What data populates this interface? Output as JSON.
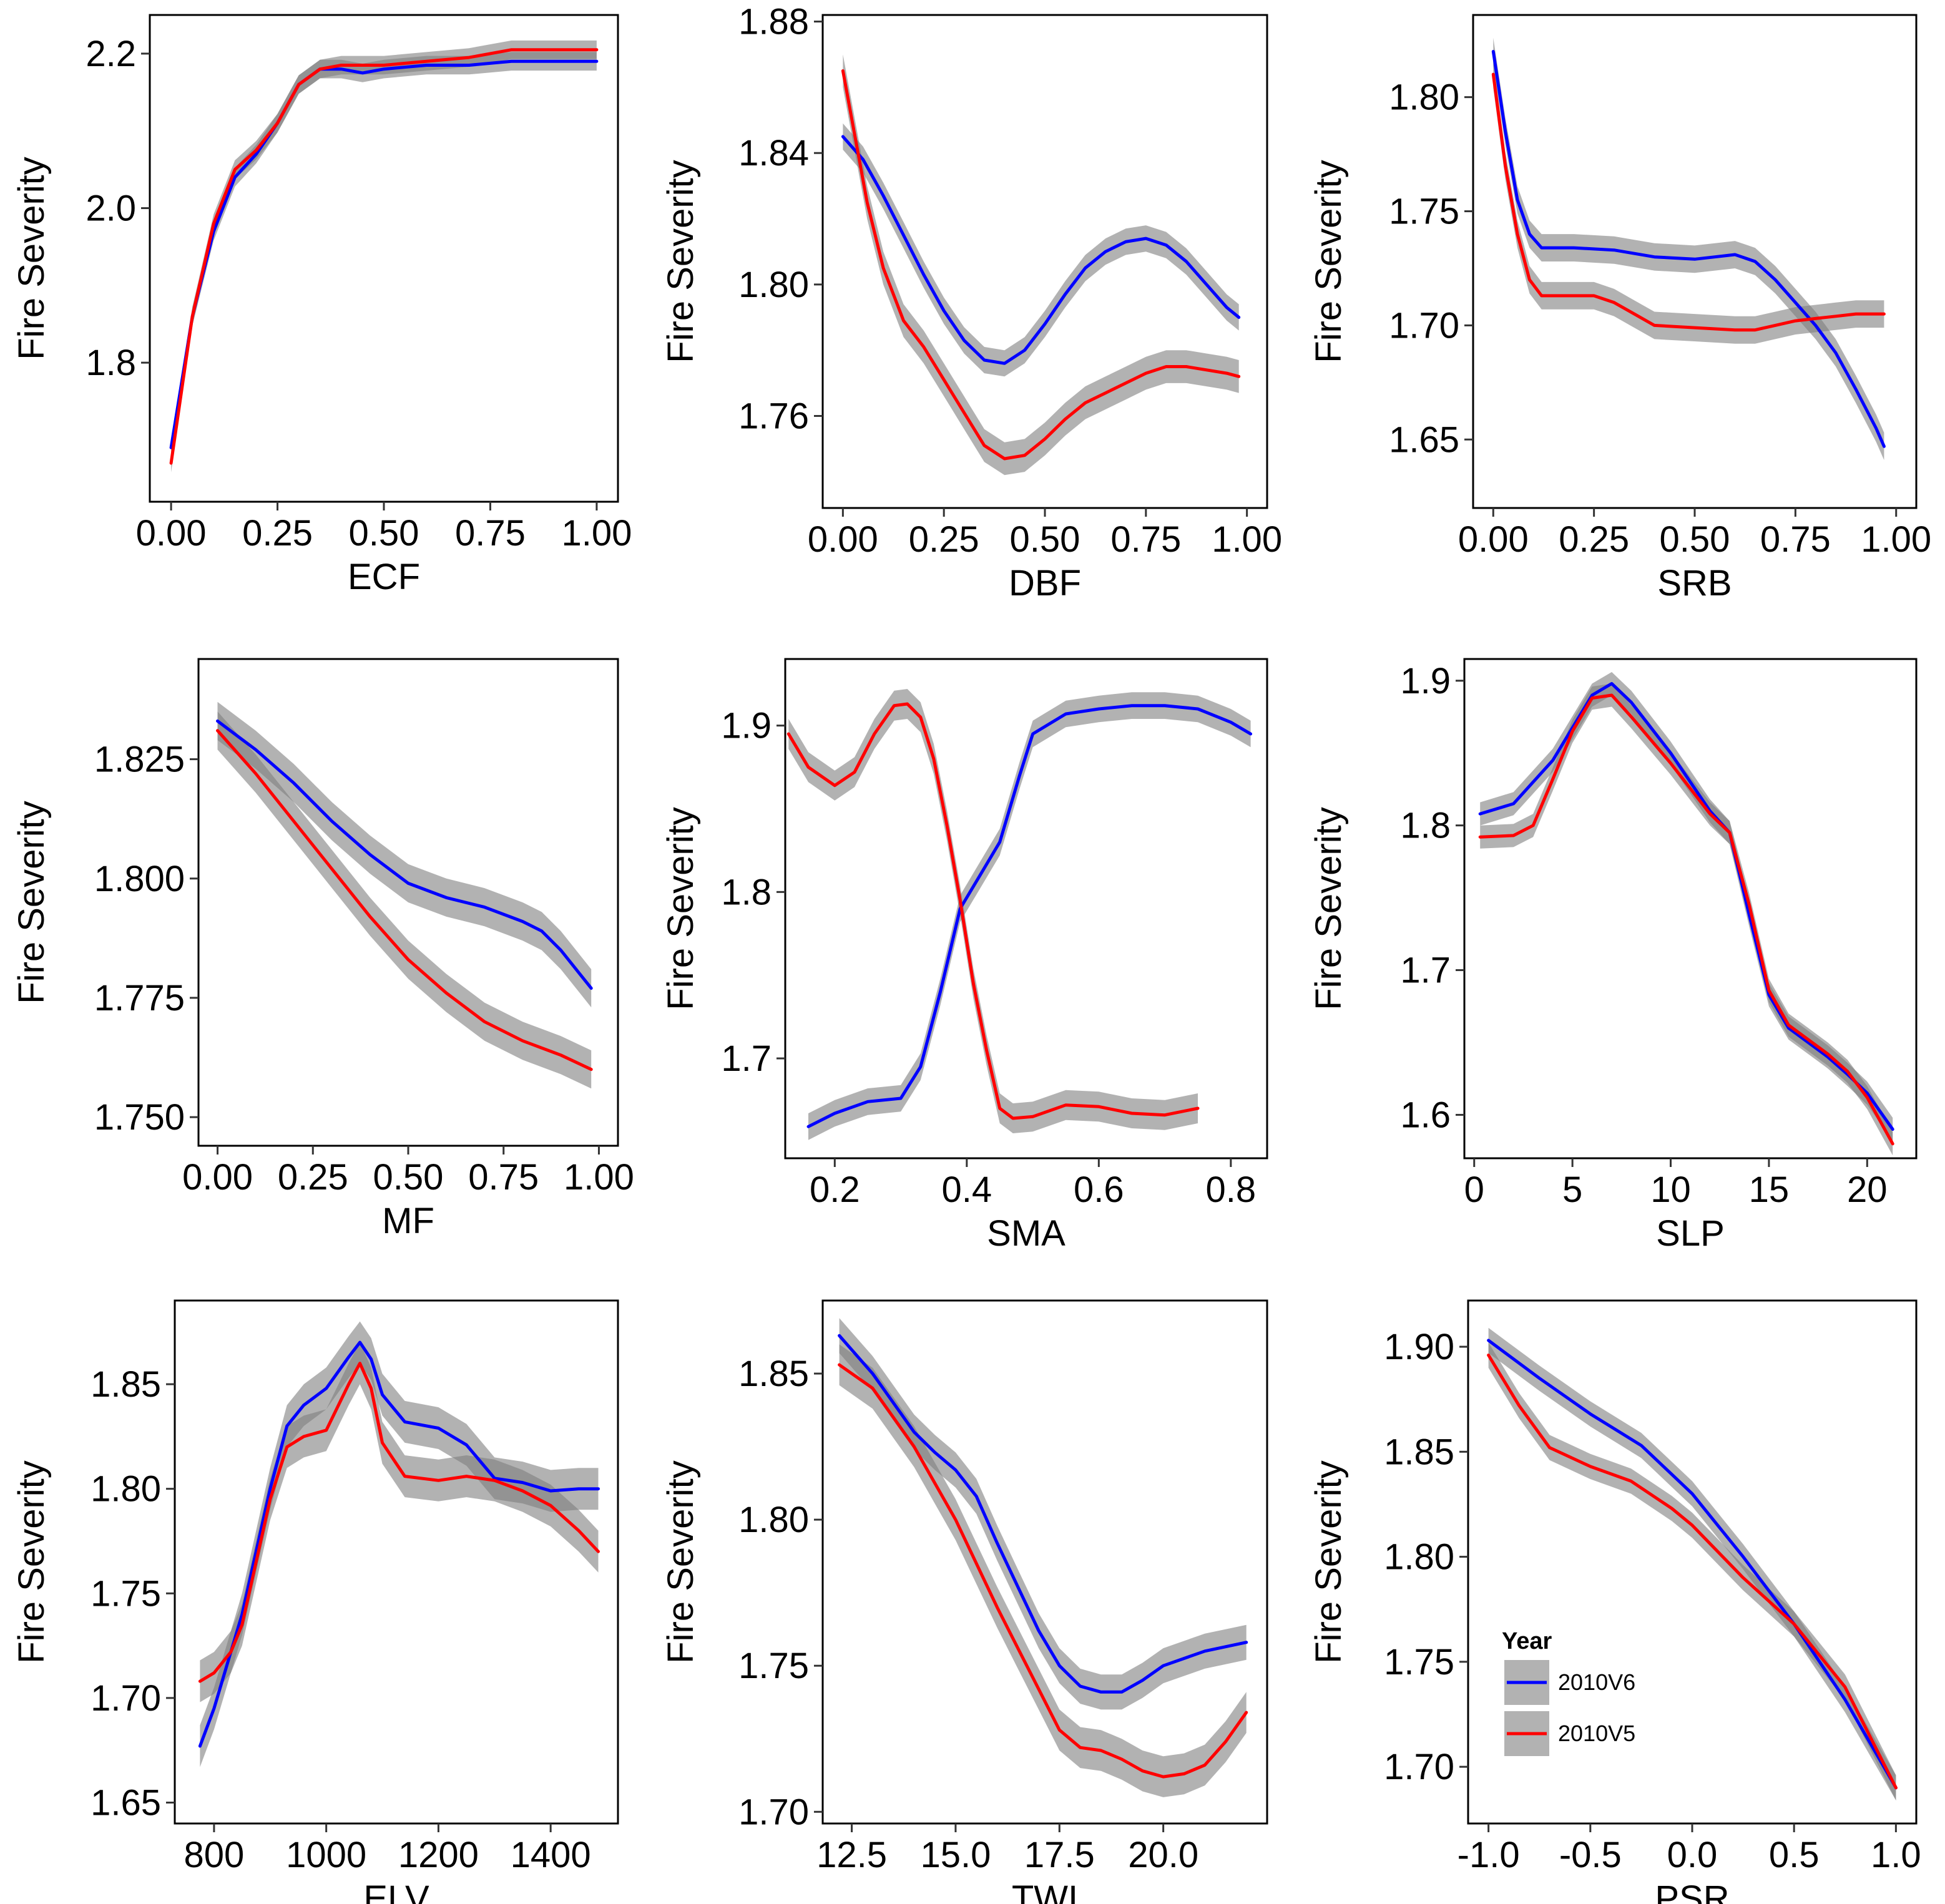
{
  "chart_data": [
    {
      "type": "line",
      "xlabel": "ECF",
      "ylabel": "Fire Severity",
      "xlim": [
        -0.05,
        1.05
      ],
      "ylim": [
        1.62,
        2.25
      ],
      "xticks": [
        "0.00",
        "0.25",
        "0.50",
        "0.75",
        "1.00"
      ],
      "xtick_values": [
        0,
        0.25,
        0.5,
        0.75,
        1.0
      ],
      "yticks": [
        "1.8",
        "2.0",
        "2.2"
      ],
      "ytick_values": [
        1.8,
        2.0,
        2.2
      ],
      "series": [
        {
          "color": "#0000ff",
          "band": 0.012,
          "x": [
            0,
            0.05,
            0.1,
            0.15,
            0.2,
            0.25,
            0.3,
            0.35,
            0.4,
            0.45,
            0.5,
            0.6,
            0.7,
            0.8,
            0.9,
            1.0
          ],
          "y": [
            1.69,
            1.86,
            1.97,
            2.04,
            2.07,
            2.11,
            2.16,
            2.18,
            2.18,
            2.175,
            2.18,
            2.185,
            2.185,
            2.19,
            2.19,
            2.19
          ]
        },
        {
          "color": "#ff0000",
          "band": 0.012,
          "x": [
            0,
            0.05,
            0.1,
            0.15,
            0.2,
            0.25,
            0.3,
            0.35,
            0.4,
            0.45,
            0.5,
            0.6,
            0.7,
            0.8,
            0.9,
            1.0
          ],
          "y": [
            1.67,
            1.86,
            1.98,
            2.05,
            2.075,
            2.11,
            2.16,
            2.18,
            2.185,
            2.185,
            2.185,
            2.19,
            2.195,
            2.205,
            2.205,
            2.205
          ]
        }
      ]
    },
    {
      "type": "line",
      "xlabel": "DBF",
      "ylabel": "Fire Severity",
      "xlim": [
        -0.05,
        1.05
      ],
      "ylim": [
        1.732,
        1.882
      ],
      "xticks": [
        "0.00",
        "0.25",
        "0.50",
        "0.75",
        "1.00"
      ],
      "xtick_values": [
        0,
        0.25,
        0.5,
        0.75,
        1.0
      ],
      "yticks": [
        "1.76",
        "1.80",
        "1.84",
        "1.88"
      ],
      "ytick_values": [
        1.76,
        1.8,
        1.84,
        1.88
      ],
      "series": [
        {
          "color": "#0000ff",
          "band": 0.004,
          "x": [
            0,
            0.05,
            0.1,
            0.15,
            0.2,
            0.25,
            0.3,
            0.35,
            0.4,
            0.45,
            0.5,
            0.55,
            0.6,
            0.65,
            0.7,
            0.75,
            0.8,
            0.85,
            0.9,
            0.95,
            0.98
          ],
          "y": [
            1.845,
            1.838,
            1.827,
            1.815,
            1.803,
            1.792,
            1.783,
            1.777,
            1.776,
            1.78,
            1.788,
            1.797,
            1.805,
            1.81,
            1.813,
            1.814,
            1.812,
            1.807,
            1.8,
            1.793,
            1.79
          ]
        },
        {
          "color": "#ff0000",
          "band": 0.005,
          "x": [
            0,
            0.03,
            0.06,
            0.1,
            0.15,
            0.2,
            0.25,
            0.3,
            0.35,
            0.4,
            0.45,
            0.5,
            0.55,
            0.6,
            0.65,
            0.7,
            0.75,
            0.8,
            0.85,
            0.9,
            0.95,
            0.98
          ],
          "y": [
            1.865,
            1.845,
            1.825,
            1.805,
            1.789,
            1.781,
            1.771,
            1.761,
            1.751,
            1.747,
            1.748,
            1.753,
            1.759,
            1.764,
            1.767,
            1.77,
            1.773,
            1.775,
            1.775,
            1.774,
            1.773,
            1.772
          ]
        }
      ]
    },
    {
      "type": "line",
      "xlabel": "SRB",
      "ylabel": "Fire Severity",
      "xlim": [
        -0.05,
        1.05
      ],
      "ylim": [
        1.62,
        1.836
      ],
      "xticks": [
        "0.00",
        "0.25",
        "0.50",
        "0.75",
        "1.00"
      ],
      "xtick_values": [
        0,
        0.25,
        0.5,
        0.75,
        1.0
      ],
      "yticks": [
        "1.65",
        "1.70",
        "1.75",
        "1.80"
      ],
      "ytick_values": [
        1.65,
        1.7,
        1.75,
        1.8
      ],
      "series": [
        {
          "color": "#0000ff",
          "band": 0.006,
          "x": [
            0,
            0.03,
            0.06,
            0.09,
            0.12,
            0.2,
            0.3,
            0.4,
            0.5,
            0.55,
            0.6,
            0.65,
            0.7,
            0.75,
            0.8,
            0.85,
            0.9,
            0.95,
            0.97
          ],
          "y": [
            1.82,
            1.785,
            1.755,
            1.74,
            1.734,
            1.734,
            1.733,
            1.73,
            1.729,
            1.73,
            1.731,
            1.728,
            1.72,
            1.71,
            1.7,
            1.688,
            1.672,
            1.655,
            1.647
          ]
        },
        {
          "color": "#ff0000",
          "band": 0.006,
          "x": [
            0,
            0.03,
            0.06,
            0.09,
            0.12,
            0.2,
            0.25,
            0.3,
            0.35,
            0.4,
            0.5,
            0.6,
            0.65,
            0.7,
            0.75,
            0.8,
            0.85,
            0.9,
            0.95,
            0.97
          ],
          "y": [
            1.81,
            1.77,
            1.74,
            1.72,
            1.713,
            1.713,
            1.713,
            1.71,
            1.705,
            1.7,
            1.699,
            1.698,
            1.698,
            1.7,
            1.702,
            1.703,
            1.704,
            1.705,
            1.705,
            1.705
          ]
        }
      ]
    },
    {
      "type": "line",
      "xlabel": "MF",
      "ylabel": "Fire Severity",
      "xlim": [
        -0.05,
        1.05
      ],
      "ylim": [
        1.744,
        1.846
      ],
      "xticks": [
        "0.00",
        "0.25",
        "0.50",
        "0.75",
        "1.00"
      ],
      "xtick_values": [
        0,
        0.25,
        0.5,
        0.75,
        1.0
      ],
      "yticks": [
        "1.750",
        "1.775",
        "1.800",
        "1.825"
      ],
      "ytick_values": [
        1.75,
        1.775,
        1.8,
        1.825
      ],
      "series": [
        {
          "color": "#0000ff",
          "band": 0.004,
          "x": [
            0,
            0.1,
            0.2,
            0.3,
            0.4,
            0.5,
            0.6,
            0.7,
            0.8,
            0.85,
            0.9,
            0.95,
            0.98
          ],
          "y": [
            1.833,
            1.827,
            1.82,
            1.812,
            1.805,
            1.799,
            1.796,
            1.794,
            1.791,
            1.789,
            1.785,
            1.78,
            1.777
          ]
        },
        {
          "color": "#ff0000",
          "band": 0.004,
          "x": [
            0,
            0.1,
            0.2,
            0.3,
            0.4,
            0.5,
            0.6,
            0.7,
            0.8,
            0.9,
            0.98
          ],
          "y": [
            1.831,
            1.822,
            1.812,
            1.802,
            1.792,
            1.783,
            1.776,
            1.77,
            1.766,
            1.763,
            1.76
          ]
        }
      ]
    },
    {
      "type": "line",
      "xlabel": "SMA",
      "ylabel": "Fire Severity",
      "xlim": [
        0.125,
        0.855
      ],
      "ylim": [
        1.64,
        1.94
      ],
      "xticks": [
        "0.2",
        "0.4",
        "0.6",
        "0.8"
      ],
      "xtick_values": [
        0.2,
        0.4,
        0.6,
        0.8
      ],
      "yticks": [
        "1.7",
        "1.8",
        "1.9"
      ],
      "ytick_values": [
        1.7,
        1.8,
        1.9
      ],
      "series": [
        {
          "color": "#0000ff",
          "band": 0.008,
          "x": [
            0.16,
            0.2,
            0.25,
            0.3,
            0.33,
            0.36,
            0.39,
            0.42,
            0.45,
            0.48,
            0.5,
            0.55,
            0.6,
            0.65,
            0.7,
            0.75,
            0.8,
            0.83
          ],
          "y": [
            1.659,
            1.667,
            1.674,
            1.676,
            1.695,
            1.74,
            1.79,
            1.81,
            1.83,
            1.87,
            1.895,
            1.907,
            1.91,
            1.912,
            1.912,
            1.91,
            1.902,
            1.895
          ]
        },
        {
          "color": "#ff0000",
          "band": 0.009,
          "x": [
            0.13,
            0.16,
            0.2,
            0.23,
            0.26,
            0.29,
            0.31,
            0.33,
            0.35,
            0.37,
            0.39,
            0.41,
            0.43,
            0.45,
            0.47,
            0.5,
            0.55,
            0.6,
            0.65,
            0.7,
            0.75
          ],
          "y": [
            1.895,
            1.875,
            1.864,
            1.872,
            1.895,
            1.912,
            1.913,
            1.905,
            1.88,
            1.84,
            1.795,
            1.745,
            1.705,
            1.67,
            1.664,
            1.665,
            1.672,
            1.671,
            1.667,
            1.666,
            1.67
          ]
        }
      ]
    },
    {
      "type": "line",
      "xlabel": "SLP",
      "ylabel": "Fire Severity",
      "xlim": [
        -0.5,
        22.5
      ],
      "ylim": [
        1.57,
        1.915
      ],
      "xticks": [
        "0",
        "5",
        "10",
        "15",
        "20"
      ],
      "xtick_values": [
        0,
        5,
        10,
        15,
        20
      ],
      "yticks": [
        "1.6",
        "1.7",
        "1.8",
        "1.9"
      ],
      "ytick_values": [
        1.6,
        1.7,
        1.8,
        1.9
      ],
      "series": [
        {
          "color": "#0000ff",
          "band": 0.008,
          "x": [
            0.3,
            2,
            4,
            6,
            7,
            8,
            10,
            12,
            13,
            14,
            15,
            16,
            17,
            18,
            19,
            20,
            21.3
          ],
          "y": [
            1.808,
            1.815,
            1.845,
            1.89,
            1.898,
            1.885,
            1.85,
            1.81,
            1.795,
            1.738,
            1.683,
            1.66,
            1.65,
            1.64,
            1.628,
            1.615,
            1.59
          ]
        },
        {
          "color": "#ff0000",
          "band": 0.008,
          "x": [
            0.3,
            2,
            3,
            4,
            5,
            6,
            7,
            8,
            10,
            12,
            13,
            14,
            15,
            16,
            17,
            18,
            19,
            20,
            21.3
          ],
          "y": [
            1.792,
            1.793,
            1.8,
            1.832,
            1.865,
            1.888,
            1.89,
            1.875,
            1.843,
            1.808,
            1.795,
            1.745,
            1.686,
            1.662,
            1.652,
            1.642,
            1.63,
            1.612,
            1.58
          ]
        }
      ]
    },
    {
      "type": "line",
      "xlabel": "ELV",
      "ylabel": "Fire Severity",
      "xlim": [
        730,
        1520
      ],
      "ylim": [
        1.64,
        1.89
      ],
      "xticks": [
        "800",
        "1000",
        "1200",
        "1400"
      ],
      "xtick_values": [
        800,
        1000,
        1200,
        1400
      ],
      "yticks": [
        "1.65",
        "1.70",
        "1.75",
        "1.80",
        "1.85"
      ],
      "ytick_values": [
        1.65,
        1.7,
        1.75,
        1.8,
        1.85
      ],
      "series": [
        {
          "color": "#0000ff",
          "band": 0.01,
          "x": [
            775,
            800,
            850,
            900,
            930,
            960,
            1000,
            1040,
            1060,
            1080,
            1100,
            1140,
            1200,
            1250,
            1300,
            1350,
            1400,
            1450,
            1485
          ],
          "y": [
            1.677,
            1.695,
            1.74,
            1.8,
            1.83,
            1.84,
            1.848,
            1.863,
            1.87,
            1.862,
            1.845,
            1.832,
            1.829,
            1.821,
            1.805,
            1.803,
            1.799,
            1.8,
            1.8
          ]
        },
        {
          "color": "#ff0000",
          "band": 0.01,
          "x": [
            775,
            800,
            830,
            850,
            900,
            930,
            960,
            1000,
            1040,
            1060,
            1080,
            1100,
            1140,
            1200,
            1250,
            1300,
            1350,
            1400,
            1450,
            1485
          ],
          "y": [
            1.708,
            1.712,
            1.722,
            1.735,
            1.795,
            1.82,
            1.825,
            1.828,
            1.85,
            1.86,
            1.848,
            1.822,
            1.806,
            1.804,
            1.806,
            1.804,
            1.799,
            1.792,
            1.78,
            1.77
          ]
        }
      ]
    },
    {
      "type": "line",
      "xlabel": "TWI",
      "ylabel": "Fire Severity",
      "xlim": [
        11.8,
        22.5
      ],
      "ylim": [
        1.696,
        1.875
      ],
      "xticks": [
        "12.5",
        "15.0",
        "17.5",
        "20.0"
      ],
      "xtick_values": [
        12.5,
        15,
        17.5,
        20
      ],
      "yticks": [
        "1.70",
        "1.75",
        "1.80",
        "1.85"
      ],
      "ytick_values": [
        1.7,
        1.75,
        1.8,
        1.85
      ],
      "series": [
        {
          "color": "#0000ff",
          "band": 0.006,
          "x": [
            12.2,
            13,
            14,
            14.5,
            15,
            15.5,
            16,
            16.5,
            17,
            17.5,
            18,
            18.5,
            19,
            19.5,
            20,
            21,
            22
          ],
          "y": [
            1.863,
            1.85,
            1.83,
            1.823,
            1.817,
            1.808,
            1.792,
            1.777,
            1.762,
            1.75,
            1.743,
            1.741,
            1.741,
            1.745,
            1.75,
            1.755,
            1.758
          ]
        },
        {
          "color": "#ff0000",
          "band": 0.007,
          "x": [
            12.2,
            13,
            14,
            15,
            15.5,
            16,
            16.5,
            17,
            17.5,
            18,
            18.5,
            19,
            19.5,
            20,
            20.5,
            21,
            21.5,
            22
          ],
          "y": [
            1.853,
            1.845,
            1.825,
            1.8,
            1.785,
            1.77,
            1.756,
            1.742,
            1.728,
            1.722,
            1.721,
            1.718,
            1.714,
            1.712,
            1.713,
            1.716,
            1.724,
            1.734
          ]
        }
      ]
    },
    {
      "type": "line",
      "xlabel": "PSR",
      "ylabel": "Fire Severity",
      "xlim": [
        -1.1,
        1.1
      ],
      "ylim": [
        1.673,
        1.922
      ],
      "xticks": [
        "-1.0",
        "-0.5",
        "0.0",
        "0.5",
        "1.0"
      ],
      "xtick_values": [
        -1,
        -0.5,
        0,
        0.5,
        1
      ],
      "yticks": [
        "1.70",
        "1.75",
        "1.80",
        "1.85",
        "1.90"
      ],
      "ytick_values": [
        1.7,
        1.75,
        1.8,
        1.85,
        1.9
      ],
      "series": [
        {
          "color": "#0000ff",
          "band": 0.006,
          "name": "2010V6",
          "x": [
            -1,
            -0.75,
            -0.5,
            -0.25,
            0,
            0.25,
            0.5,
            0.75,
            1.0
          ],
          "y": [
            1.903,
            1.885,
            1.868,
            1.853,
            1.83,
            1.8,
            1.768,
            1.732,
            1.69
          ]
        },
        {
          "color": "#ff0000",
          "band": 0.006,
          "name": "2010V5",
          "x": [
            -1,
            -0.85,
            -0.7,
            -0.5,
            -0.3,
            -0.1,
            0,
            0.25,
            0.5,
            0.75,
            1.0
          ],
          "y": [
            1.896,
            1.872,
            1.852,
            1.843,
            1.836,
            1.823,
            1.815,
            1.79,
            1.768,
            1.738,
            1.69
          ]
        }
      ]
    }
  ],
  "legend": {
    "title": "Year",
    "items": [
      {
        "label": "2010V6",
        "color": "#0000ff"
      },
      {
        "label": "2010V5",
        "color": "#ff0000"
      }
    ]
  }
}
